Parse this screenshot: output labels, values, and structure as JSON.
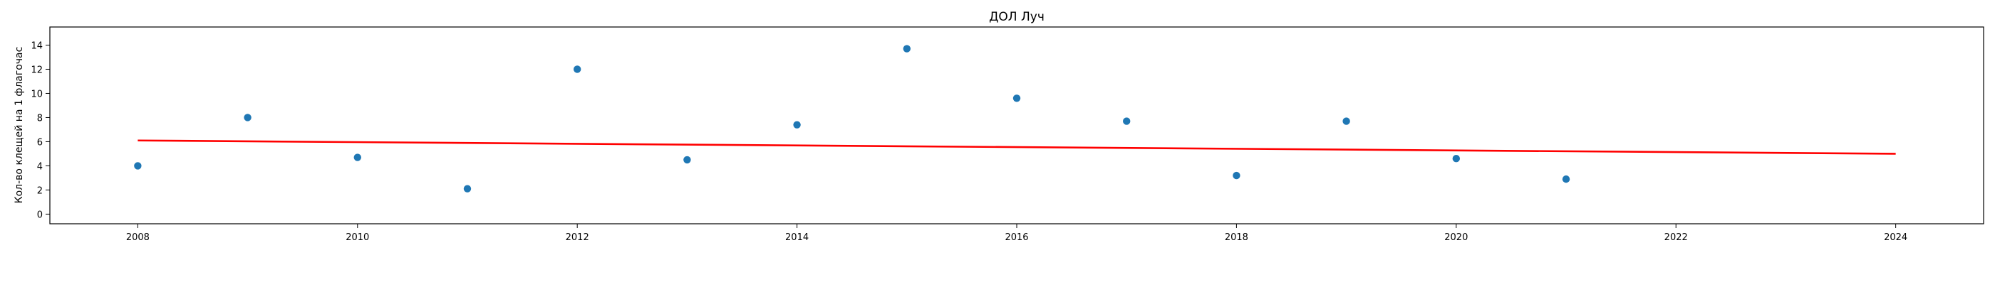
{
  "chart_data": {
    "type": "scatter",
    "title": "ДОЛ Луч",
    "xlabel": "",
    "ylabel": "Кол-во клещей на 1 флагочас",
    "xlim": [
      2007.2,
      2024.8
    ],
    "ylim": [
      -0.8,
      15.5
    ],
    "x_ticks": [
      2008,
      2010,
      2012,
      2014,
      2016,
      2018,
      2020,
      2022,
      2024
    ],
    "y_ticks": [
      0,
      2,
      4,
      6,
      8,
      10,
      12,
      14
    ],
    "grid": false,
    "series": [
      {
        "type": "scatter",
        "color": "#1f77b4",
        "x": [
          2008,
          2009,
          2010,
          2011,
          2012,
          2013,
          2014,
          2015,
          2016,
          2017,
          2018,
          2019,
          2020,
          2021
        ],
        "y": [
          4.0,
          8.0,
          4.7,
          2.1,
          12.0,
          4.5,
          7.4,
          13.7,
          9.6,
          7.7,
          3.2,
          7.7,
          4.6,
          2.9
        ]
      },
      {
        "type": "line",
        "color": "#ff0000",
        "x": [
          2008,
          2024
        ],
        "y": [
          6.1,
          5.0
        ]
      }
    ]
  }
}
